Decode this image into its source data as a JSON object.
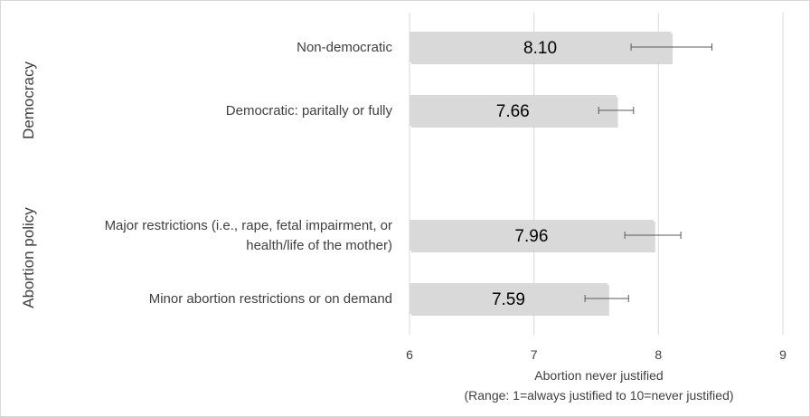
{
  "chart_data": {
    "type": "bar",
    "orientation": "horizontal",
    "title": "",
    "groups": [
      {
        "label": "Democracy",
        "items": [
          {
            "category": [
              "Non-democratic"
            ],
            "value": 8.1,
            "value_label": "8.10",
            "error": [
              7.78,
              8.43
            ]
          },
          {
            "category": [
              "Democratic: paritally or fully"
            ],
            "value": 7.66,
            "value_label": "7.66",
            "error": [
              7.52,
              7.8
            ]
          }
        ]
      },
      {
        "label": "Abortion policy",
        "items": [
          {
            "category": [
              "Major restrictions (i.e., rape, fetal impairment, or",
              "health/life of the mother)"
            ],
            "value": 7.96,
            "value_label": "7.96",
            "error": [
              7.73,
              8.18
            ]
          },
          {
            "category": [
              "Minor abortion restrictions or  on demand"
            ],
            "value": 7.59,
            "value_label": "7.59",
            "error": [
              7.41,
              7.76
            ]
          }
        ]
      }
    ],
    "xlim": [
      6,
      9
    ],
    "xticks": [
      "6",
      "7",
      "8",
      "9"
    ],
    "xlabel": [
      "Abortion never justified",
      "(Range: 1=always justified to 10=never justified)"
    ],
    "grid": "vertical",
    "colors": {
      "bar_fill": "#d9d9d9",
      "bar_shadow": "#bfbfbf",
      "grid": "#d9d9d9",
      "error_bar": "#595959"
    }
  }
}
